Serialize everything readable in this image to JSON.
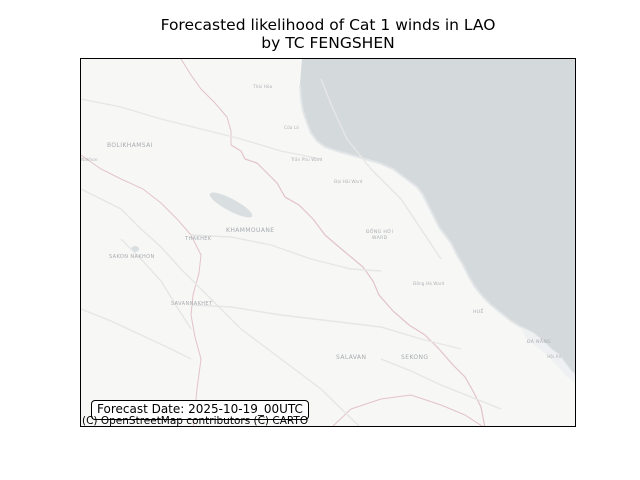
{
  "title": {
    "line1": "Forecasted likelihood of Cat 1 winds in LAO",
    "line2": "by TC FENGSHEN"
  },
  "map": {
    "colors": {
      "land": "#f7f7f6",
      "sea": "#d4d9dc",
      "border": "#e4c4c9",
      "road": "#e9e9e9",
      "lake": "#d0d6da"
    },
    "labels": {
      "bolikhamsai": "BOLIKHAMSAI",
      "khammouane": "KHAMMOUANE",
      "thakhek": "THAKHEK",
      "sakon_nakhon": "SAKON NAKHON",
      "savannakhet": "SAVANNAKHET",
      "salavan": "SALAVAN",
      "sekong": "SEKONG",
      "dong_hoi": "ĐỒNG HỚI",
      "ward": "WARD",
      "thai_hoa": "Thái Hòa",
      "cua_lo": "Cửa Lò",
      "tran_phu": "Trần Phú Ward",
      "dai_hai": "Đại Hải Ward",
      "dong_ha": "Đông Hà Ward",
      "hue": "HUẾ",
      "da_nang": "ĐÀ NẴNG",
      "hoi_an": "Hội An",
      "nakhon_phanom": "Nakhon"
    }
  },
  "forecast_date": "Forecast Date: 2025-10-19_00UTC",
  "attribution": "(C) OpenStreetMap contributors (C) CARTO"
}
